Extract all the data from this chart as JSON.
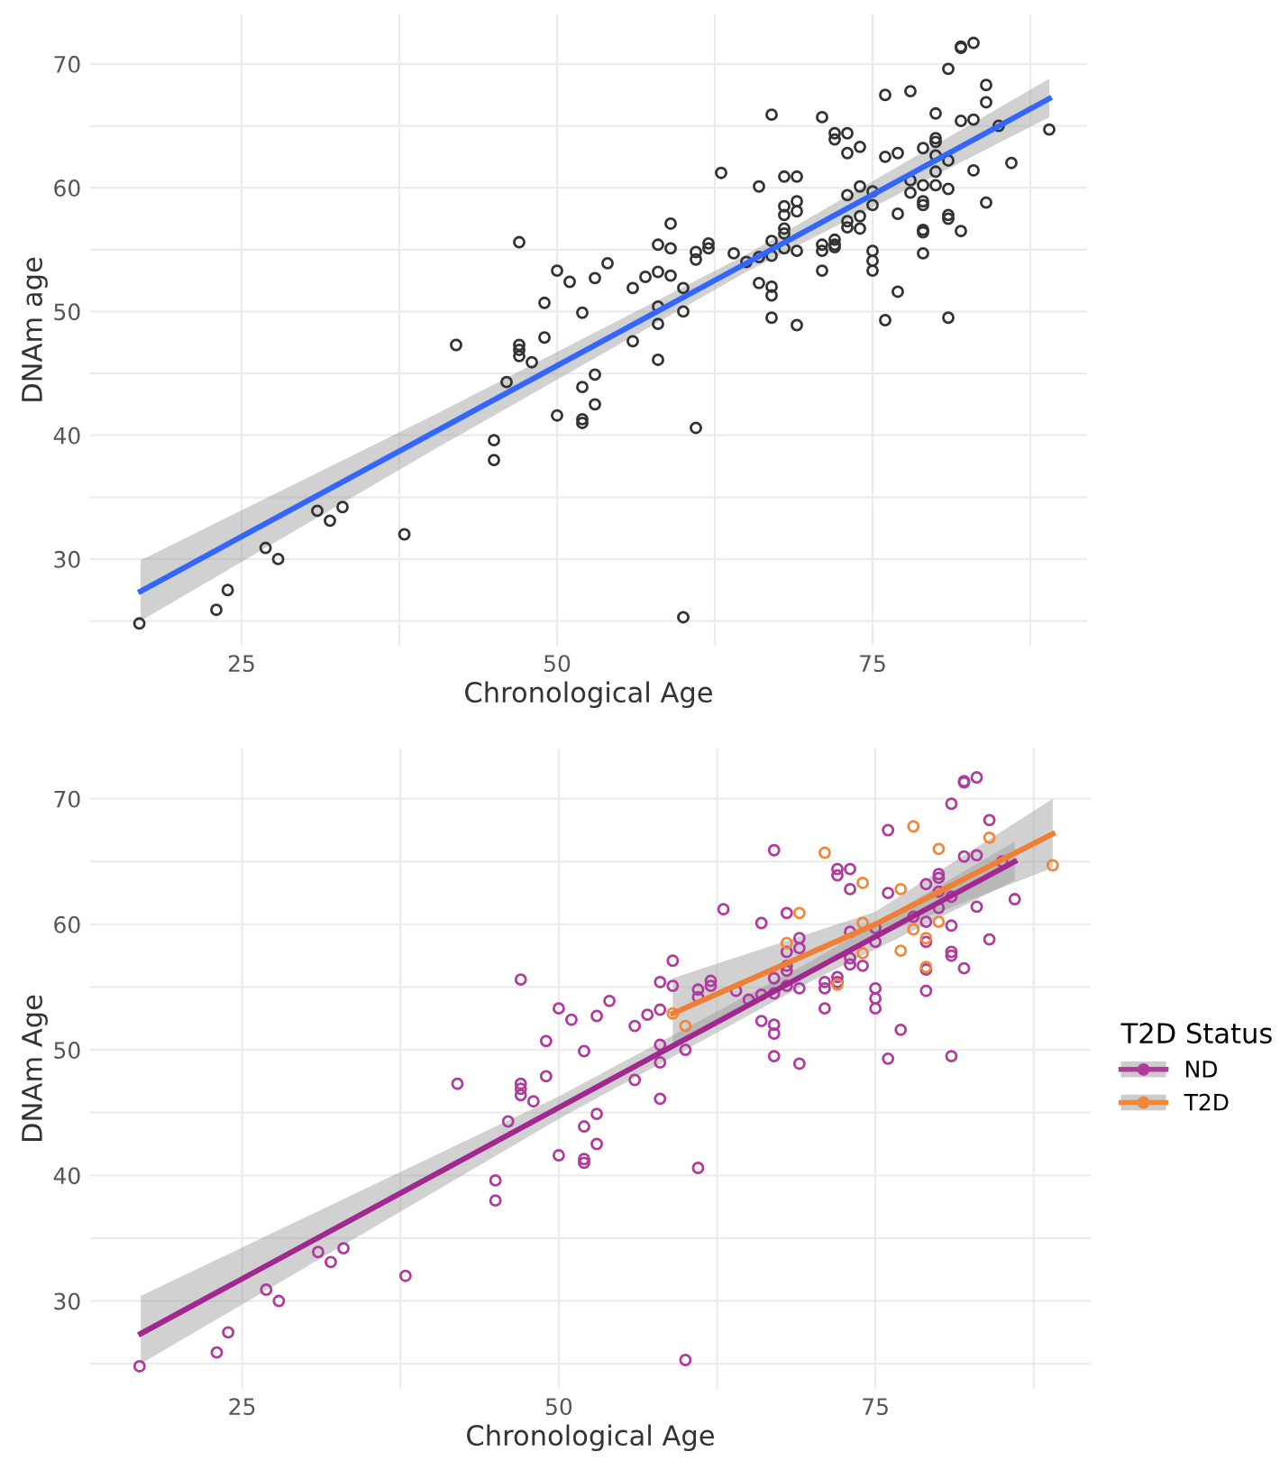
{
  "chart_data": [
    {
      "type": "scatter",
      "xlabel": "Chronological Age",
      "ylabel": "DNAm age",
      "xlim": [
        13,
        92
      ],
      "ylim": [
        23,
        74
      ],
      "xticks": [
        25,
        {
          "value": 37.5,
          "label": null
        },
        50,
        {
          "value": 62.5,
          "label": null
        },
        75,
        {
          "value": 87.5,
          "label": null
        }
      ],
      "yticks": [
        {
          "value": 25,
          "label": null
        },
        30,
        {
          "value": 35,
          "label": null
        },
        40,
        {
          "value": 45,
          "label": null
        },
        50,
        {
          "value": 55,
          "label": null
        },
        60,
        {
          "value": 65,
          "label": null
        },
        70
      ],
      "grid": true,
      "legend": false,
      "series": [
        {
          "marker": "circle",
          "color": "#333333",
          "x": [
            16.9,
            23.0,
            23.9,
            26.9,
            27.9,
            31.0,
            32.0,
            33.0,
            37.9,
            42.0,
            45.0,
            45.0,
            46.0,
            47.0,
            47.0,
            47.0,
            47.0,
            48.0,
            49.0,
            49.0,
            50.0,
            50.0,
            51.0,
            52.0,
            52.0,
            52.0,
            52.0,
            53.0,
            53.0,
            53.0,
            54.0,
            56.0,
            56.0,
            57.0,
            58.0,
            58.0,
            58.0,
            58.0,
            58.0,
            59.0,
            59.0,
            59.0,
            60.0,
            60.0,
            60.0,
            61.0,
            61.0,
            61.0,
            62.0,
            62.0,
            63.0,
            64.0,
            65.0,
            66.0,
            66.0,
            66.0,
            67.0,
            67.0,
            67.0,
            67.0,
            67.0,
            67.0,
            68.0,
            68.0,
            68.0,
            68.0,
            68.0,
            68.0,
            69.0,
            69.0,
            69.0,
            69.0,
            69.0,
            71.0,
            71.0,
            71.0,
            71.0,
            72.0,
            72.0,
            72.0,
            72.0,
            72.0,
            73.0,
            73.0,
            73.0,
            73.0,
            73.0,
            74.0,
            74.0,
            74.0,
            74.0,
            75.0,
            75.0,
            75.0,
            75.0,
            75.0,
            76.0,
            76.0,
            76.0,
            77.0,
            77.0,
            77.0,
            78.0,
            78.0,
            78.0,
            79.0,
            79.0,
            79.0,
            79.0,
            79.0,
            79.0,
            79.0,
            80.0,
            80.0,
            80.0,
            80.0,
            80.0,
            80.0,
            81.0,
            81.0,
            81.0,
            81.0,
            81.0,
            81.0,
            82.0,
            82.0,
            82.0,
            82.0,
            83.0,
            83.0,
            83.0,
            84.0,
            84.0,
            84.0,
            85.0,
            86.0,
            89.0
          ],
          "values": [
            24.8,
            25.9,
            27.5,
            30.9,
            30.0,
            33.9,
            33.1,
            34.2,
            32.0,
            47.3,
            39.6,
            38.0,
            44.3,
            55.6,
            47.3,
            46.9,
            46.4,
            45.9,
            50.7,
            47.9,
            53.3,
            41.6,
            52.4,
            49.9,
            43.9,
            41.3,
            41.0,
            52.7,
            44.9,
            42.5,
            53.9,
            51.9,
            47.6,
            52.8,
            55.4,
            53.2,
            50.4,
            49.0,
            46.1,
            57.1,
            55.1,
            52.9,
            51.9,
            50.0,
            25.3,
            54.8,
            54.2,
            40.6,
            55.5,
            55.1,
            61.2,
            54.7,
            54.0,
            60.1,
            54.4,
            52.3,
            65.9,
            55.7,
            54.5,
            52.0,
            51.3,
            49.5,
            60.9,
            58.5,
            57.8,
            56.7,
            56.3,
            55.1,
            60.9,
            58.9,
            58.1,
            54.9,
            48.9,
            65.7,
            55.4,
            54.9,
            53.3,
            64.4,
            63.9,
            55.8,
            55.4,
            55.2,
            64.4,
            62.8,
            59.4,
            57.3,
            56.8,
            63.3,
            60.1,
            57.7,
            56.7,
            59.7,
            58.6,
            54.9,
            54.1,
            53.3,
            67.5,
            62.5,
            49.3,
            62.8,
            57.9,
            51.6,
            67.8,
            60.6,
            59.6,
            63.2,
            60.2,
            58.9,
            58.6,
            56.6,
            56.4,
            54.7,
            66.0,
            64.0,
            63.7,
            62.6,
            61.3,
            60.2,
            69.6,
            62.2,
            59.9,
            57.8,
            57.5,
            49.5,
            71.4,
            71.3,
            65.4,
            56.5,
            71.7,
            65.5,
            61.4,
            68.3,
            66.9,
            58.8,
            65.0,
            62.0,
            64.7
          ]
        },
        {
          "type": "line",
          "color": "#3366ff",
          "x": [
            17,
            40,
            65,
            89
          ],
          "values": [
            27.4,
            40.1,
            53.9,
            67.2
          ],
          "lower": [
            25.0,
            38.7,
            53.2,
            65.7
          ],
          "upper": [
            29.9,
            41.5,
            54.6,
            68.8
          ]
        }
      ]
    },
    {
      "type": "scatter",
      "xlabel": "Chronological Age",
      "ylabel": "DNAm Age",
      "legend_title": "T2D Status",
      "xlim": [
        13,
        92
      ],
      "ylim": [
        23,
        74
      ],
      "xticks": [
        25,
        {
          "value": 37.5,
          "label": null
        },
        50,
        {
          "value": 62.5,
          "label": null
        },
        75,
        {
          "value": 87.5,
          "label": null
        }
      ],
      "yticks": [
        {
          "value": 25,
          "label": null
        },
        30,
        {
          "value": 35,
          "label": null
        },
        40,
        {
          "value": 45,
          "label": null
        },
        50,
        {
          "value": 55,
          "label": null
        },
        60,
        {
          "value": 65,
          "label": null
        },
        70
      ],
      "grid": true,
      "legend": "right",
      "series": [
        {
          "marker": "circle",
          "name": "ND",
          "color": "#b03a9e",
          "x": [
            16.9,
            23.0,
            23.9,
            26.9,
            27.9,
            31.0,
            32.0,
            33.0,
            37.9,
            42.0,
            45.0,
            45.0,
            46.0,
            47.0,
            47.0,
            47.0,
            47.0,
            48.0,
            49.0,
            49.0,
            50.0,
            50.0,
            51.0,
            52.0,
            52.0,
            52.0,
            52.0,
            53.0,
            53.0,
            53.0,
            54.0,
            56.0,
            56.0,
            57.0,
            58.0,
            58.0,
            58.0,
            58.0,
            58.0,
            59.0,
            59.0,
            60.0,
            60.0,
            61.0,
            61.0,
            61.0,
            62.0,
            62.0,
            63.0,
            64.0,
            65.0,
            66.0,
            66.0,
            66.0,
            67.0,
            67.0,
            67.0,
            67.0,
            67.0,
            67.0,
            68.0,
            68.0,
            68.0,
            68.0,
            68.0,
            69.0,
            69.0,
            69.0,
            69.0,
            71.0,
            71.0,
            71.0,
            72.0,
            72.0,
            72.0,
            72.0,
            73.0,
            73.0,
            73.0,
            73.0,
            73.0,
            74.0,
            75.0,
            75.0,
            75.0,
            75.0,
            75.0,
            76.0,
            76.0,
            76.0,
            77.0,
            78.0,
            79.0,
            79.0,
            79.0,
            79.0,
            79.0,
            80.0,
            80.0,
            80.0,
            80.0,
            81.0,
            81.0,
            81.0,
            81.0,
            81.0,
            81.0,
            82.0,
            82.0,
            82.0,
            82.0,
            83.0,
            83.0,
            83.0,
            84.0,
            84.0,
            85.0,
            86.0
          ],
          "values": [
            24.8,
            25.9,
            27.5,
            30.9,
            30.0,
            33.9,
            33.1,
            34.2,
            32.0,
            47.3,
            39.6,
            38.0,
            44.3,
            55.6,
            47.3,
            46.9,
            46.4,
            45.9,
            50.7,
            47.9,
            53.3,
            41.6,
            52.4,
            49.9,
            43.9,
            41.3,
            41.0,
            52.7,
            44.9,
            42.5,
            53.9,
            51.9,
            47.6,
            52.8,
            55.4,
            53.2,
            50.4,
            49.0,
            46.1,
            57.1,
            55.1,
            50.0,
            25.3,
            54.8,
            54.2,
            40.6,
            55.5,
            55.1,
            61.2,
            54.7,
            54.0,
            60.1,
            54.4,
            52.3,
            65.9,
            55.7,
            54.5,
            52.0,
            51.3,
            49.5,
            60.9,
            57.8,
            56.7,
            56.3,
            55.1,
            58.9,
            58.1,
            54.9,
            48.9,
            55.4,
            54.9,
            53.3,
            64.4,
            63.9,
            55.8,
            55.4,
            64.4,
            62.8,
            59.4,
            57.3,
            56.8,
            56.7,
            59.7,
            58.6,
            54.9,
            54.1,
            53.3,
            67.5,
            62.5,
            49.3,
            51.6,
            60.6,
            63.2,
            60.2,
            58.6,
            56.4,
            54.7,
            64.0,
            63.7,
            62.6,
            61.3,
            69.6,
            62.2,
            59.9,
            57.8,
            57.5,
            49.5,
            71.4,
            71.3,
            65.4,
            56.5,
            71.7,
            65.5,
            61.4,
            68.3,
            58.8,
            65.0,
            62.0
          ]
        },
        {
          "marker": "circle",
          "name": "T2D",
          "color": "#f0883a",
          "x": [
            59.0,
            60.0,
            68.0,
            69.0,
            71.0,
            72.0,
            74.0,
            74.0,
            74.0,
            77.0,
            77.0,
            78.0,
            78.0,
            79.0,
            79.0,
            80.0,
            80.0,
            84.0,
            89.0
          ],
          "values": [
            52.9,
            51.9,
            58.5,
            60.9,
            65.7,
            55.2,
            63.3,
            60.1,
            57.7,
            62.8,
            57.9,
            67.8,
            59.6,
            58.9,
            56.6,
            66.0,
            60.2,
            66.9,
            64.7
          ]
        },
        {
          "type": "line",
          "color": "#a0288e",
          "x": [
            17,
            50,
            70,
            86
          ],
          "values": [
            27.4,
            45.4,
            56.3,
            65.0
          ],
          "lower": [
            25.0,
            44.5,
            55.5,
            63.5
          ],
          "upper": [
            30.4,
            46.3,
            57.1,
            66.6
          ]
        },
        {
          "type": "line",
          "color": "#ee8036",
          "x": [
            59,
            75,
            89
          ],
          "values": [
            52.9,
            60.0,
            67.2
          ],
          "lower": [
            50.5,
            59.0,
            64.5
          ],
          "upper": [
            55.7,
            61.0,
            70.0
          ]
        }
      ]
    }
  ]
}
